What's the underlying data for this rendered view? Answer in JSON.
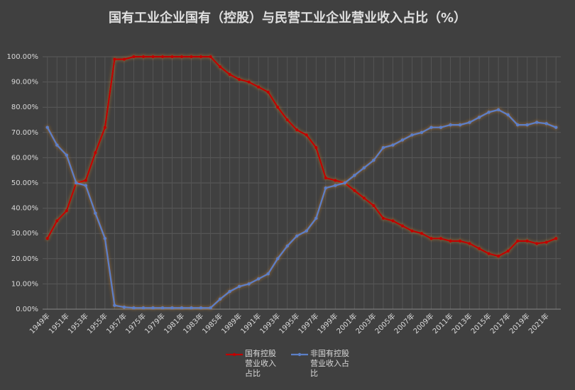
{
  "chart_data": {
    "type": "line",
    "title": "国有工业企业国有（控股）与民营工业企业营业收入占比（%）",
    "categories": [
      "1949年",
      null,
      "1951年",
      null,
      "1953年",
      null,
      "1955年",
      null,
      "1957年",
      null,
      "1975年",
      null,
      "1979年",
      null,
      "1981年",
      null,
      "1983年",
      null,
      "1985年",
      null,
      "1989年",
      null,
      "1991年",
      null,
      "1993年",
      null,
      "1995年",
      null,
      "1997年",
      null,
      "1999年",
      null,
      "2001年",
      null,
      "2003年",
      null,
      "2005年",
      null,
      "2007年",
      null,
      "2009年",
      null,
      "2011年",
      null,
      "2013年",
      null,
      "2015年",
      null,
      "2017年",
      null,
      "2019年",
      null,
      "2021年",
      null
    ],
    "series": [
      {
        "name": "国有控股营业收入占比",
        "color": "#c00000",
        "values": [
          28,
          35,
          39,
          50,
          51,
          62,
          72,
          99,
          99,
          100,
          100,
          100,
          100,
          100,
          100,
          100,
          100,
          100,
          96,
          93,
          91,
          90,
          88,
          86,
          80,
          75,
          71,
          69,
          64,
          52,
          51,
          50,
          47,
          44,
          41,
          36,
          35,
          33,
          31,
          30,
          28,
          28,
          27,
          27,
          26,
          24,
          22,
          21,
          23,
          27,
          27,
          26,
          26.5,
          28
        ]
      },
      {
        "name": "非国有控股营业收入占比",
        "color": "#5b7fc7",
        "values": [
          72,
          65,
          61,
          50,
          49,
          38,
          28,
          1.5,
          0.8,
          0.5,
          0.5,
          0.5,
          0.5,
          0.5,
          0.5,
          0.5,
          0.5,
          0.5,
          4,
          7,
          9,
          10,
          12,
          14,
          20,
          25,
          29,
          31,
          36,
          48,
          49,
          50,
          53,
          56,
          59,
          64,
          65,
          67,
          69,
          70,
          72,
          72,
          73,
          73,
          74,
          76,
          78,
          79,
          77,
          73,
          73,
          74,
          73.5,
          72
        ]
      }
    ],
    "ylim": [
      0,
      100
    ],
    "yticks": [
      {
        "value": 0,
        "label": "0.00%"
      },
      {
        "value": 10,
        "label": "10.00%"
      },
      {
        "value": 20,
        "label": "20.00%"
      },
      {
        "value": 30,
        "label": "30.00%"
      },
      {
        "value": 40,
        "label": "40.00%"
      },
      {
        "value": 50,
        "label": "50.00%"
      },
      {
        "value": 60,
        "label": "60.00%"
      },
      {
        "value": 70,
        "label": "70.00%"
      },
      {
        "value": 80,
        "label": "80.00%"
      },
      {
        "value": 90,
        "label": "90.00%"
      },
      {
        "value": 100,
        "label": "100.00%"
      }
    ],
    "grid": true,
    "legend": "bottom"
  }
}
